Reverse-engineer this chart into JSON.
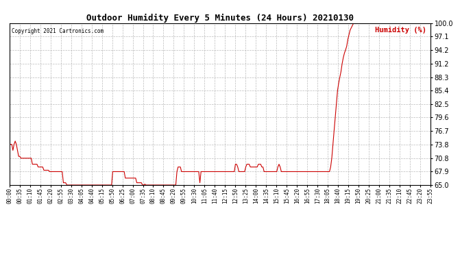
{
  "title": "Outdoor Humidity Every 5 Minutes (24 Hours) 20210130",
  "copyright": "Copyright 2021 Cartronics.com",
  "ylabel": "Humidity (%)",
  "line_color": "#cc0000",
  "background_color": "#ffffff",
  "grid_color": "#aaaaaa",
  "ylim": [
    65.0,
    100.0
  ],
  "yticks": [
    65.0,
    67.9,
    70.8,
    73.8,
    76.7,
    79.6,
    82.5,
    85.4,
    88.3,
    91.2,
    94.2,
    97.1,
    100.0
  ],
  "humidity_data": [
    73.8,
    73.8,
    73.8,
    72.5,
    73.8,
    74.5,
    73.8,
    72.5,
    71.2,
    71.2,
    70.8,
    70.8,
    70.8,
    70.8,
    70.8,
    70.8,
    70.8,
    70.8,
    70.8,
    70.8,
    69.5,
    69.5,
    69.5,
    69.5,
    69.5,
    68.9,
    68.9,
    68.9,
    68.9,
    68.9,
    68.2,
    68.2,
    68.2,
    68.2,
    68.2,
    67.9,
    67.9,
    67.9,
    67.9,
    67.9,
    67.9,
    67.9,
    67.9,
    67.9,
    67.9,
    67.9,
    67.9,
    65.5,
    65.5,
    65.5,
    65.0,
    65.0,
    65.0,
    65.0,
    65.0,
    65.0,
    65.0,
    65.0,
    65.0,
    65.0,
    65.0,
    65.0,
    65.0,
    65.0,
    65.0,
    65.0,
    65.0,
    65.0,
    65.0,
    65.0,
    65.0,
    65.0,
    65.0,
    65.0,
    65.0,
    65.0,
    65.0,
    65.0,
    65.0,
    65.0,
    65.0,
    65.0,
    65.0,
    65.0,
    65.0,
    65.0,
    65.0,
    65.0,
    65.0,
    65.0,
    67.9,
    67.9,
    67.9,
    67.9,
    67.9,
    67.9,
    67.9,
    67.9,
    67.9,
    67.9,
    67.9,
    66.5,
    66.5,
    66.5,
    66.5,
    66.5,
    66.5,
    66.5,
    66.5,
    66.5,
    66.5,
    65.5,
    65.5,
    65.5,
    65.5,
    65.5,
    65.0,
    65.0,
    65.2,
    65.0,
    65.0,
    65.0,
    65.0,
    65.0,
    65.0,
    65.0,
    65.0,
    65.0,
    65.0,
    65.0,
    65.0,
    65.0,
    65.0,
    65.0,
    65.0,
    65.0,
    65.0,
    65.0,
    65.0,
    65.0,
    65.0,
    65.0,
    65.0,
    65.0,
    65.0,
    65.0,
    67.9,
    68.9,
    68.9,
    68.9,
    67.9,
    67.9,
    67.9,
    67.9,
    67.9,
    67.9,
    67.9,
    67.9,
    67.9,
    67.9,
    67.9,
    67.9,
    67.9,
    67.9,
    67.9,
    67.9,
    65.5,
    67.9,
    67.9,
    67.9,
    67.9,
    67.9,
    67.9,
    67.9,
    67.9,
    67.9,
    67.9,
    67.9,
    67.9,
    67.9,
    67.9,
    67.9,
    67.9,
    67.9,
    67.9,
    67.9,
    67.9,
    67.9,
    67.9,
    67.9,
    67.9,
    67.9,
    67.9,
    67.9,
    67.9,
    67.9,
    67.9,
    69.5,
    69.5,
    68.9,
    67.9,
    67.9,
    67.9,
    67.9,
    67.9,
    67.9,
    68.9,
    69.5,
    69.5,
    69.5,
    68.9,
    68.9,
    68.9,
    68.9,
    68.9,
    68.9,
    68.9,
    69.5,
    69.5,
    69.5,
    68.9,
    68.9,
    67.9,
    67.9,
    67.9,
    67.9,
    67.9,
    67.9,
    67.9,
    67.9,
    67.9,
    67.9,
    67.9,
    67.9,
    68.9,
    69.5,
    68.9,
    67.9,
    67.9,
    67.9,
    67.9,
    67.9,
    67.9,
    67.9,
    67.9,
    67.9,
    67.9,
    67.9,
    67.9,
    67.9,
    67.9,
    67.9,
    67.9,
    67.9,
    67.9,
    67.9,
    67.9,
    67.9,
    67.9,
    67.9,
    67.9,
    67.9,
    67.9,
    67.9,
    67.9,
    67.9,
    67.9,
    67.9,
    67.9,
    67.9,
    67.9,
    67.9,
    67.9,
    67.9,
    67.9,
    67.9,
    67.9,
    67.9,
    67.9,
    67.9,
    68.9,
    70.8,
    73.8,
    76.7,
    79.6,
    82.5,
    85.4,
    87.0,
    88.3,
    89.5,
    91.2,
    92.5,
    93.5,
    94.2,
    95.0,
    96.5,
    97.5,
    98.5,
    99.0,
    99.5,
    100.0,
    100.0,
    100.0,
    100.0,
    100.0,
    100.0,
    100.0,
    100.0,
    100.0,
    100.0,
    100.0,
    100.0,
    100.0,
    100.0,
    100.0,
    100.0,
    100.0,
    100.0,
    100.0,
    100.0,
    100.0,
    100.0,
    100.0,
    100.0,
    100.0,
    100.0,
    100.0,
    100.0,
    100.0,
    100.0,
    100.0,
    100.0,
    100.0,
    100.0,
    100.0,
    100.0,
    100.0,
    100.0,
    100.0,
    100.0,
    100.0,
    100.0,
    100.0,
    100.0,
    100.0,
    100.0,
    100.0,
    100.0,
    100.0,
    100.0,
    100.0,
    100.0,
    100.0,
    100.0,
    100.0,
    100.0,
    100.0,
    100.0,
    100.0,
    100.0,
    100.0,
    100.0,
    100.0,
    100.0,
    100.0,
    100.0,
    100.0,
    100.0
  ],
  "xtick_labels": [
    "00:00",
    "00:35",
    "01:10",
    "01:45",
    "02:20",
    "02:55",
    "03:30",
    "04:05",
    "04:40",
    "05:15",
    "05:50",
    "06:25",
    "07:00",
    "07:35",
    "08:10",
    "08:45",
    "09:20",
    "09:55",
    "10:30",
    "11:05",
    "11:40",
    "12:15",
    "12:50",
    "13:25",
    "14:00",
    "14:35",
    "15:10",
    "15:45",
    "16:20",
    "16:55",
    "17:30",
    "18:05",
    "18:40",
    "19:15",
    "19:50",
    "20:25",
    "21:00",
    "21:35",
    "22:10",
    "22:45",
    "23:20",
    "23:55"
  ]
}
